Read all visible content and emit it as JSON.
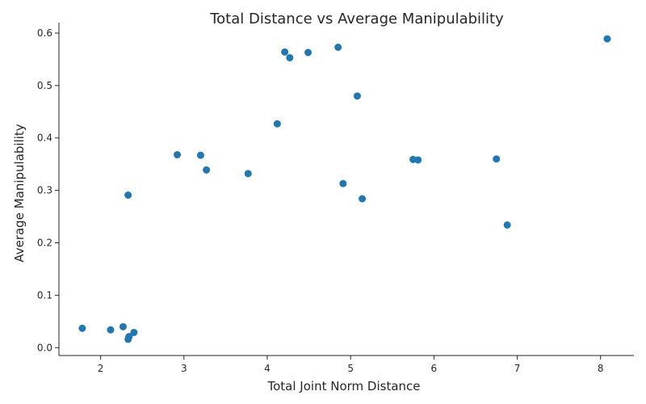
{
  "chart_data": {
    "type": "scatter",
    "title": "Total Distance vs Average Manipulability",
    "xlabel": "Total Joint Norm Distance",
    "ylabel": "Average Manipulability",
    "xlim": [
      1.5,
      8.4
    ],
    "ylim": [
      -0.015,
      0.62
    ],
    "xticks": [
      2,
      3,
      4,
      5,
      6,
      7,
      8
    ],
    "yticks": [
      0.0,
      0.1,
      0.2,
      0.3,
      0.4,
      0.5,
      0.6
    ],
    "xtick_labels": [
      "2",
      "3",
      "4",
      "5",
      "6",
      "7",
      "8"
    ],
    "ytick_labels": [
      "0.0",
      "0.1",
      "0.2",
      "0.3",
      "0.4",
      "0.5",
      "0.6"
    ],
    "grid": false,
    "marker_color": "#1f77b4",
    "points": [
      {
        "x": 1.78,
        "y": 0.037
      },
      {
        "x": 2.12,
        "y": 0.034
      },
      {
        "x": 2.27,
        "y": 0.04
      },
      {
        "x": 2.34,
        "y": 0.021
      },
      {
        "x": 2.33,
        "y": 0.016
      },
      {
        "x": 2.4,
        "y": 0.029
      },
      {
        "x": 2.33,
        "y": 0.291
      },
      {
        "x": 2.92,
        "y": 0.368
      },
      {
        "x": 3.2,
        "y": 0.367
      },
      {
        "x": 3.27,
        "y": 0.339
      },
      {
        "x": 3.77,
        "y": 0.332
      },
      {
        "x": 4.12,
        "y": 0.427
      },
      {
        "x": 4.21,
        "y": 0.564
      },
      {
        "x": 4.27,
        "y": 0.553
      },
      {
        "x": 4.49,
        "y": 0.563
      },
      {
        "x": 4.85,
        "y": 0.573
      },
      {
        "x": 4.91,
        "y": 0.313
      },
      {
        "x": 5.08,
        "y": 0.48
      },
      {
        "x": 5.14,
        "y": 0.284
      },
      {
        "x": 5.75,
        "y": 0.359
      },
      {
        "x": 5.81,
        "y": 0.358
      },
      {
        "x": 6.75,
        "y": 0.36
      },
      {
        "x": 6.88,
        "y": 0.234
      },
      {
        "x": 8.08,
        "y": 0.589
      }
    ]
  }
}
